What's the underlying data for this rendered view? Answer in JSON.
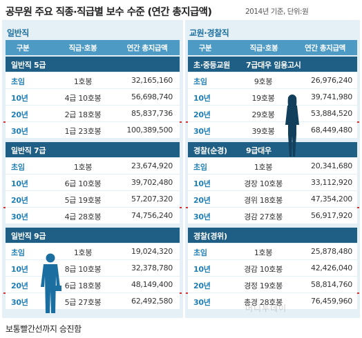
{
  "title": "공무원 주요 직종·직급별 보수 수준 (연간 총지급액)",
  "note": "2014년 기준, 단위:원",
  "columns": {
    "rank": "구분",
    "grade": "직급·호봉",
    "salary": "연간 총지급액"
  },
  "general": {
    "title": "일반직",
    "sections": [
      {
        "label": "일반직 5급",
        "rows": [
          {
            "rank": "초임",
            "grade": "1호봉",
            "salary": "32,165,160"
          },
          {
            "rank": "10년",
            "grade": "4급 10호봉",
            "salary": "56,698,740"
          },
          {
            "rank": "20년",
            "grade": "2급 18호봉",
            "salary": "85,837,736"
          },
          {
            "rank": "30년",
            "grade": "1급 23호봉",
            "salary": "100,389,500"
          }
        ]
      },
      {
        "label": "일반직 7급",
        "rows": [
          {
            "rank": "초임",
            "grade": "1호봉",
            "salary": "23,674,920"
          },
          {
            "rank": "10년",
            "grade": "6급 10호봉",
            "salary": "39,702,480"
          },
          {
            "rank": "20년",
            "grade": "5급 19호봉",
            "salary": "57,207,320"
          },
          {
            "rank": "30년",
            "grade": "4급 28호봉",
            "salary": "74,756,240"
          }
        ]
      },
      {
        "label": "일반직 9급",
        "rows": [
          {
            "rank": "초임",
            "grade": "1호봉",
            "salary": "19,024,320"
          },
          {
            "rank": "10년",
            "grade": "8급 10호봉",
            "salary": "32,378,780"
          },
          {
            "rank": "20년",
            "grade": "6급 18호봉",
            "salary": "48,149,400"
          },
          {
            "rank": "30년",
            "grade": "5급 27호봉",
            "salary": "62,492,580"
          }
        ]
      }
    ]
  },
  "teacher_police": {
    "title": "교원·경찰직",
    "sections": [
      {
        "label": "초·중등교원",
        "extra": "7급대우 임용고시",
        "rows": [
          {
            "rank": "초임",
            "grade": "9호봉",
            "salary": "26,976,240"
          },
          {
            "rank": "10년",
            "grade": "19호봉",
            "salary": "39,741,980"
          },
          {
            "rank": "20년",
            "grade": "29호봉",
            "salary": "53,884,520"
          },
          {
            "rank": "30년",
            "grade": "39호봉",
            "salary": "68,449,480"
          }
        ]
      },
      {
        "label": "경찰(순경)",
        "extra": "9급대우",
        "rows": [
          {
            "rank": "초임",
            "grade": "1호봉",
            "salary": "20,341,680"
          },
          {
            "rank": "10년",
            "grade": "경장 10호봉",
            "salary": "33,112,920"
          },
          {
            "rank": "20년",
            "grade": "경위 18호봉",
            "salary": "47,354,200"
          },
          {
            "rank": "30년",
            "grade": "경감 27호봉",
            "salary": "56,917,920"
          }
        ]
      },
      {
        "label": "경찰(경위)",
        "extra": "",
        "rows": [
          {
            "rank": "초임",
            "grade": "1호봉",
            "salary": "25,878,480"
          },
          {
            "rank": "10년",
            "grade": "경감 10호봉",
            "salary": "42,426,040"
          },
          {
            "rank": "20년",
            "grade": "경정 19호봉",
            "salary": "58,814,760"
          },
          {
            "rank": "30년",
            "grade": "총경 28호봉",
            "salary": "76,459,960"
          }
        ]
      }
    ]
  },
  "footer": "보통빨간선까지 승진함",
  "watermark": "머니투데이",
  "colors": {
    "header": "#4d9ac4",
    "section": "#1f5f86",
    "panel_bg": "#e4f0f6",
    "accent_red": "#e02a2a",
    "rank_text": "#1f7fb5"
  },
  "icons": [
    "businessman-silhouette",
    "businesswoman-silhouette"
  ]
}
